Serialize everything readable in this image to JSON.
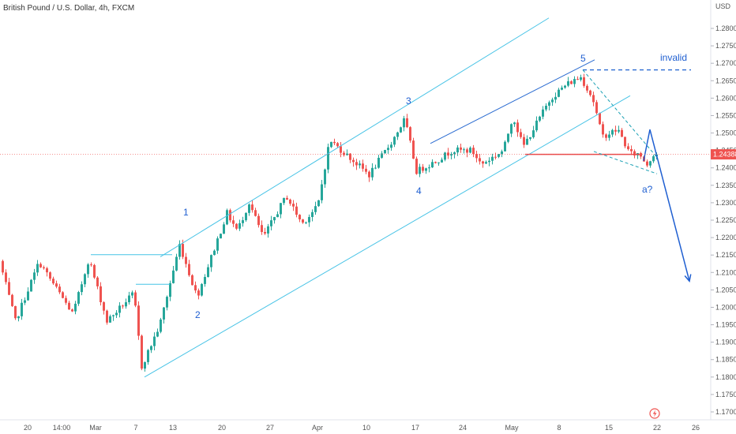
{
  "header": {
    "symbol_title": "British Pound / U.S. Dollar, 4h, FXCM"
  },
  "price_axis": {
    "currency_label": "USD",
    "ticks": [
      "1.28000",
      "1.27500",
      "1.27000",
      "1.26500",
      "1.26000",
      "1.25500",
      "1.25000",
      "1.24500",
      "1.24000",
      "1.23500",
      "1.23000",
      "1.22500",
      "1.22000",
      "1.21500",
      "1.21000",
      "1.20500",
      "1.20000",
      "1.19500",
      "1.19000",
      "1.18500",
      "1.18000",
      "1.17500",
      "1.17000"
    ],
    "current_price_label": "1.24388"
  },
  "time_axis": {
    "labels": [
      "20",
      "14:00",
      "Mar",
      "7",
      "13",
      "20",
      "27",
      "Apr",
      "10",
      "17",
      "24",
      "May",
      "8",
      "15",
      "22",
      "26"
    ]
  },
  "annotations": {
    "wave_1": "1",
    "wave_2": "2",
    "wave_3": "3",
    "wave_4": "4",
    "wave_5": "5",
    "wave_a": "a?",
    "invalid_label": "invalid"
  },
  "colors": {
    "up": "#26a69a",
    "down": "#ef5350",
    "channel": "#47c3e6",
    "wedge": "#2a6bd1",
    "projection": "#1f5fd1",
    "support": "#e84a4a",
    "price_badge": "#ef5350"
  },
  "chart_data": {
    "type": "candlestick",
    "title": "British Pound / U.S. Dollar, 4h, FXCM",
    "ylim": [
      1.168,
      1.2855
    ],
    "y_unit": "USD",
    "waypoints": [
      [
        0,
        1.215
      ],
      [
        22,
        1.196
      ],
      [
        52,
        1.213
      ],
      [
        95,
        1.198
      ],
      [
        115,
        1.214
      ],
      [
        138,
        1.196
      ],
      [
        172,
        1.204
      ],
      [
        182,
        1.183
      ],
      [
        205,
        1.195
      ],
      [
        230,
        1.218
      ],
      [
        252,
        1.203
      ],
      [
        290,
        1.227
      ],
      [
        303,
        1.222
      ],
      [
        318,
        1.23
      ],
      [
        336,
        1.22
      ],
      [
        365,
        1.232
      ],
      [
        385,
        1.224
      ],
      [
        405,
        1.229
      ],
      [
        420,
        1.248
      ],
      [
        450,
        1.242
      ],
      [
        470,
        1.238
      ],
      [
        500,
        1.248
      ],
      [
        515,
        1.254
      ],
      [
        530,
        1.239
      ],
      [
        555,
        1.242
      ],
      [
        575,
        1.245
      ],
      [
        600,
        1.245
      ],
      [
        612,
        1.241
      ],
      [
        640,
        1.245
      ],
      [
        652,
        1.255
      ],
      [
        665,
        1.246
      ],
      [
        700,
        1.26
      ],
      [
        720,
        1.264
      ],
      [
        738,
        1.266
      ],
      [
        753,
        1.26
      ],
      [
        765,
        1.249
      ],
      [
        785,
        1.251
      ],
      [
        800,
        1.244
      ],
      [
        812,
        1.244
      ],
      [
        822,
        1.241
      ],
      [
        830,
        1.244
      ]
    ],
    "candle_start_x": 2,
    "candle_step_x": 4,
    "candle_count": 208,
    "noise_amplitude": 0.0015,
    "last_price": 1.24388,
    "overlays": {
      "channel_upper": [
        [
          203,
          1.2145
        ],
        [
          695,
          1.283
        ]
      ],
      "channel_lower": [
        [
          183,
          1.18
        ],
        [
          798,
          1.2607
        ]
      ],
      "channel_inner": [
        [
          545,
          1.247
        ],
        [
          753,
          1.271
        ]
      ],
      "support_line": [
        [
          665,
          1.24388
        ],
        [
          810,
          1.24388
        ]
      ],
      "invalid_line": [
        [
          738,
          1.2681
        ],
        [
          875,
          1.2681
        ]
      ],
      "wedge_upper": [
        [
          738,
          1.2681
        ],
        [
          832,
          1.243
        ]
      ],
      "wedge_lower": [
        [
          752,
          1.2447
        ],
        [
          832,
          1.2383
        ]
      ],
      "projection_path": [
        [
          815,
          1.242
        ],
        [
          823,
          1.251
        ],
        [
          873,
          1.2075
        ]
      ],
      "left_lines": [
        [
          [
            115,
            1.2151
          ],
          [
            218,
            1.2151
          ]
        ],
        [
          [
            172,
            1.2066
          ],
          [
            215,
            1.2066
          ]
        ]
      ]
    }
  }
}
